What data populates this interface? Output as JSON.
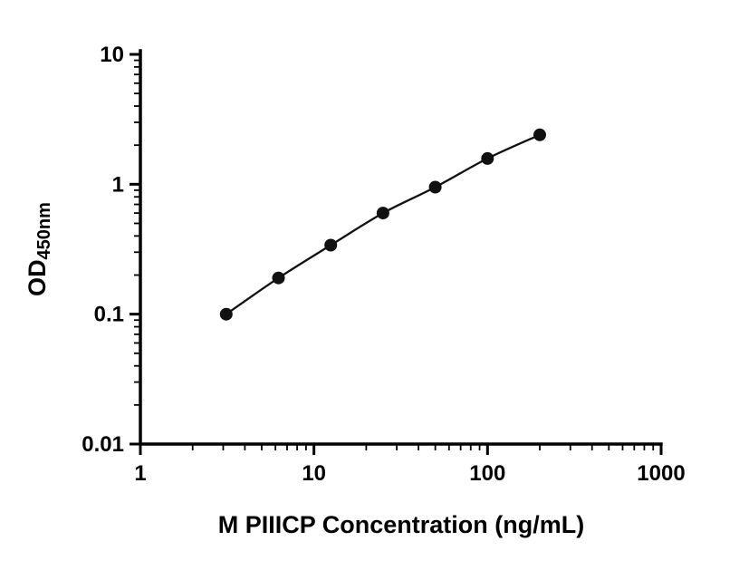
{
  "chart_data": {
    "type": "scatter",
    "title": "",
    "xlabel": "M PIIICP Concentration (ng/mL)",
    "ylabel_main": "OD",
    "ylabel_sub": "450nm",
    "x_scale": "log",
    "y_scale": "log",
    "xlim": [
      1,
      1000
    ],
    "ylim": [
      0.01,
      10
    ],
    "x_ticks": [
      1,
      10,
      100,
      1000
    ],
    "x_tick_labels": [
      "1",
      "10",
      "100",
      "1000"
    ],
    "y_ticks": [
      0.01,
      0.1,
      1,
      10
    ],
    "y_tick_labels": [
      "0.01",
      "0.1",
      "1",
      "10"
    ],
    "minor_ticks": true,
    "grid": false,
    "legend": "none",
    "points": [
      {
        "x": 3.125,
        "y": 0.1
      },
      {
        "x": 6.25,
        "y": 0.19
      },
      {
        "x": 12.5,
        "y": 0.34
      },
      {
        "x": 25,
        "y": 0.6
      },
      {
        "x": 50,
        "y": 0.95
      },
      {
        "x": 100,
        "y": 1.58
      },
      {
        "x": 200,
        "y": 2.4
      }
    ],
    "marker_color": "#111111",
    "line_color": "#111111",
    "axis_color": "#000000"
  }
}
